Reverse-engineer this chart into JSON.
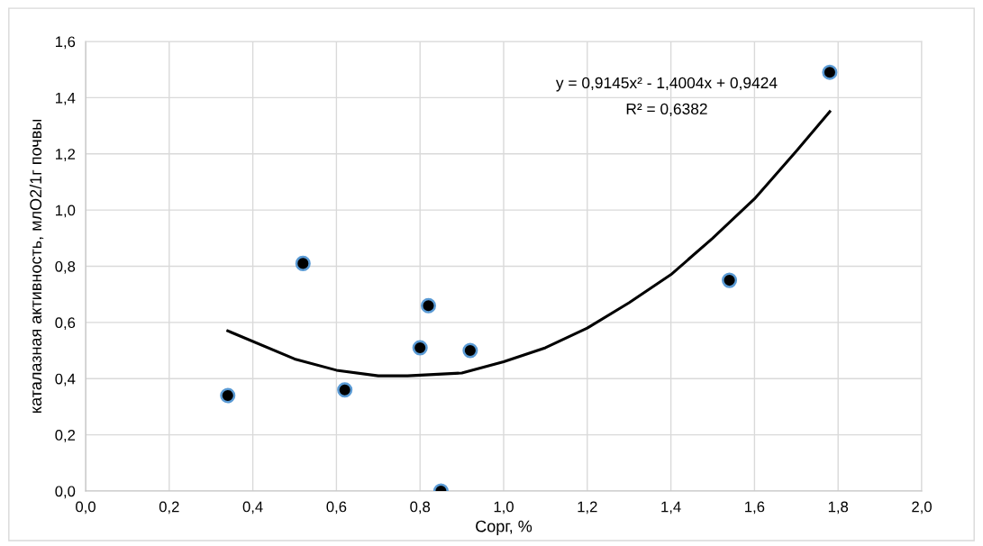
{
  "chart_data": {
    "type": "scatter",
    "xlabel": "Сорг, %",
    "ylabel": "каталазная активность, млО2/1г почвы",
    "xlim": [
      0,
      2.0
    ],
    "ylim": [
      0,
      1.6
    ],
    "xticks": [
      {
        "value": 0,
        "label": "0,0"
      },
      {
        "value": 0.2,
        "label": "0,2"
      },
      {
        "value": 0.4,
        "label": "0,4"
      },
      {
        "value": 0.6,
        "label": "0,6"
      },
      {
        "value": 0.8,
        "label": "0,8"
      },
      {
        "value": 1.0,
        "label": "1,0"
      },
      {
        "value": 1.2,
        "label": "1,2"
      },
      {
        "value": 1.4,
        "label": "1,4"
      },
      {
        "value": 1.6,
        "label": "1,6"
      },
      {
        "value": 1.8,
        "label": "1,8"
      },
      {
        "value": 2.0,
        "label": "2,0"
      }
    ],
    "yticks": [
      {
        "value": 0,
        "label": "0,0"
      },
      {
        "value": 0.2,
        "label": "0,2"
      },
      {
        "value": 0.4,
        "label": "0,4"
      },
      {
        "value": 0.6,
        "label": "0,6"
      },
      {
        "value": 0.8,
        "label": "0,8"
      },
      {
        "value": 1.0,
        "label": "1,0"
      },
      {
        "value": 1.2,
        "label": "1,2"
      },
      {
        "value": 1.4,
        "label": "1,4"
      },
      {
        "value": 1.6,
        "label": "1,6"
      }
    ],
    "grid": true,
    "series": [
      {
        "color": "#000000",
        "marker": "circle",
        "x": [
          0.34,
          0.52,
          0.62,
          0.8,
          0.82,
          0.85,
          0.92,
          1.54,
          1.78
        ],
        "values": [
          0.34,
          0.81,
          0.36,
          0.51,
          0.66,
          0.0,
          0.5,
          0.75,
          1.49
        ]
      },
      {
        "type": "line",
        "color": "#000000",
        "marker": "none",
        "line_style": "solid",
        "x": [
          0.34,
          0.5,
          0.6,
          0.7,
          0.77,
          0.9,
          1.0,
          1.1,
          1.2,
          1.3,
          1.4,
          1.5,
          1.6,
          1.7,
          1.78
        ],
        "values": [
          0.57,
          0.47,
          0.43,
          0.41,
          0.41,
          0.42,
          0.46,
          0.51,
          0.58,
          0.67,
          0.77,
          0.9,
          1.04,
          1.21,
          1.35
        ]
      }
    ],
    "annotations": [
      "y = 0,9145x² - 1,4004x + 0,9424",
      "R² = 0,6382"
    ]
  }
}
